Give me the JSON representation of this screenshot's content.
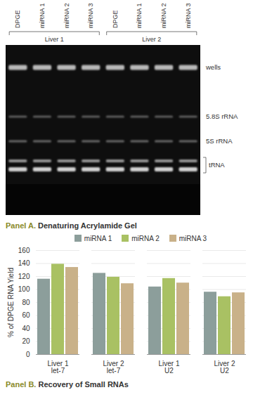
{
  "panel_a": {
    "lanes": [
      "DPGE",
      "miRNA 1",
      "miRNA 2",
      "miRNA 3",
      "DPGE",
      "miRNA 1",
      "miRNA 2",
      "miRNA 3"
    ],
    "groups": [
      "Liver 1",
      "Liver 2"
    ],
    "bands": [
      "wells",
      "5.8S rRNA",
      "5S rRNA",
      "tRNA"
    ]
  },
  "captions": [
    {
      "label": "Panel A.",
      "text": "Denaturing Acrylamide Gel"
    },
    {
      "label": "Panel B.",
      "text": "Recovery of Small RNAs"
    }
  ],
  "chart_data": {
    "type": "bar",
    "y_label": "% of DPGE RNA Yield",
    "categories": [
      "Liver 1\nlet-7",
      "Liver 2\nlet-7",
      "Liver 1\nU2",
      "Liver 2\nU2"
    ],
    "series": [
      {
        "name": "miRNA 1",
        "color": "#8c9e9b",
        "values": [
          116,
          125,
          104,
          96
        ]
      },
      {
        "name": "miRNA 2",
        "color": "#a9c163",
        "values": [
          139,
          119,
          117,
          89
        ]
      },
      {
        "name": "miRNA 3",
        "color": "#c9b189",
        "values": [
          134,
          109,
          110,
          95
        ]
      }
    ],
    "ylim": [
      0,
      160
    ],
    "yticks": [
      0,
      20,
      40,
      60,
      80,
      100,
      120,
      140,
      160
    ],
    "grid": true,
    "legend": "top"
  }
}
